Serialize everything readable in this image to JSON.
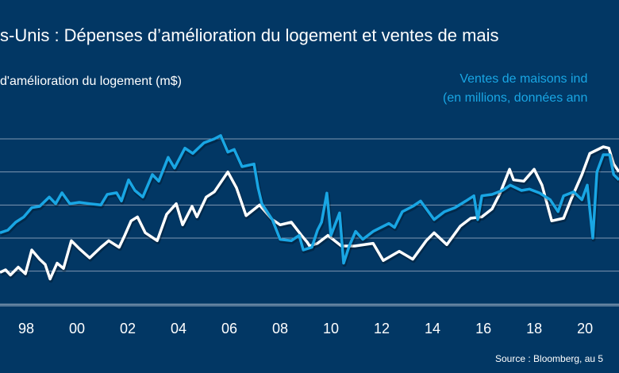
{
  "chart_data": {
    "type": "line",
    "title": "s-Unis : Dépenses d’amélioration du logement et ventes de mais",
    "left_axis_label": "d'amélioration du logement (m$)",
    "right_axis_label": [
      "Ventes de maisons ind",
      "(en millions, données ann"
    ],
    "source": "Source : Bloomberg, au 5",
    "x_tick_labels": [
      "98",
      "00",
      "02",
      "04",
      "06",
      "08",
      "10",
      "12",
      "14",
      "16",
      "18",
      "20"
    ],
    "x_tick_years": [
      1998,
      2000,
      2002,
      2004,
      2006,
      2008,
      2010,
      2012,
      2014,
      2016,
      2018,
      2020
    ],
    "xlim": [
      1996.97,
      2021.34
    ],
    "ylim": [
      0,
      5
    ],
    "grid": true,
    "colors": {
      "background": "#023764",
      "home_improvement": "#ffffff",
      "home_sales": "#19a6e4",
      "grid": "#7f97b2"
    },
    "series": [
      {
        "key": "home_improvement",
        "x": [
          1996.97,
          1997.19,
          1997.38,
          1997.69,
          1997.97,
          1998.22,
          1998.53,
          1998.75,
          1998.94,
          1999.22,
          1999.47,
          1999.78,
          2000.09,
          2000.5,
          2000.94,
          2001.25,
          2001.66,
          2001.88,
          2002.13,
          2002.38,
          2002.69,
          2003.16,
          2003.53,
          2003.91,
          2004.16,
          2004.53,
          2004.72,
          2005.09,
          2005.41,
          2005.94,
          2006.28,
          2006.66,
          2007.19,
          2007.69,
          2008.0,
          2008.44,
          2008.84,
          2009.06,
          2009.16,
          2009.47,
          2009.88,
          2010.41,
          2010.94,
          2011.66,
          2012.06,
          2012.69,
          2013.22,
          2013.75,
          2014.06,
          2014.56,
          2015.09,
          2015.5,
          2015.94,
          2016.34,
          2016.66,
          2017.03,
          2017.19,
          2017.59,
          2018.0,
          2018.31,
          2018.69,
          2019.16,
          2019.47,
          2019.88,
          2020.19,
          2020.72,
          2020.94,
          2021.13,
          2021.34
        ],
        "y": [
          0.96,
          1.04,
          0.88,
          1.12,
          0.92,
          1.64,
          1.36,
          1.2,
          0.76,
          1.24,
          1.08,
          1.92,
          1.68,
          1.4,
          1.72,
          1.92,
          1.72,
          2.08,
          2.52,
          2.64,
          2.16,
          1.92,
          2.72,
          3.04,
          2.4,
          2.96,
          2.64,
          3.24,
          3.4,
          4.0,
          3.52,
          2.68,
          3.0,
          2.56,
          2.4,
          2.48,
          2.08,
          1.88,
          1.76,
          1.84,
          2.08,
          1.76,
          1.76,
          1.84,
          1.32,
          1.6,
          1.36,
          1.92,
          2.16,
          1.8,
          2.36,
          2.6,
          2.64,
          2.88,
          3.36,
          4.08,
          3.76,
          3.72,
          4.08,
          3.6,
          2.52,
          2.6,
          3.2,
          3.92,
          4.56,
          4.76,
          4.72,
          4.24,
          4.0
        ]
      },
      {
        "key": "home_sales",
        "x": [
          1996.97,
          1997.28,
          1997.59,
          1997.91,
          1998.22,
          1998.53,
          1998.91,
          1999.16,
          1999.41,
          1999.72,
          2000.09,
          2000.5,
          2000.94,
          2001.19,
          2001.56,
          2001.75,
          2002.03,
          2002.28,
          2002.59,
          2002.97,
          2003.22,
          2003.59,
          2003.84,
          2004.25,
          2004.56,
          2005.0,
          2005.41,
          2005.66,
          2005.94,
          2006.19,
          2006.5,
          2006.97,
          2007.13,
          2007.28,
          2007.69,
          2008.0,
          2008.44,
          2008.75,
          2008.91,
          2009.25,
          2009.47,
          2009.63,
          2009.84,
          2010.0,
          2010.34,
          2010.5,
          2010.72,
          2010.97,
          2011.25,
          2011.66,
          2011.97,
          2012.28,
          2012.5,
          2012.81,
          2013.22,
          2013.53,
          2014.06,
          2014.47,
          2014.88,
          2015.31,
          2015.63,
          2015.78,
          2015.94,
          2016.34,
          2016.75,
          2017.06,
          2017.5,
          2017.81,
          2018.22,
          2018.63,
          2018.94,
          2019.16,
          2019.56,
          2019.88,
          2020.09,
          2020.31,
          2020.47,
          2020.72,
          2020.97,
          2021.13,
          2021.34
        ],
        "y": [
          2.16,
          2.24,
          2.48,
          2.64,
          2.92,
          2.96,
          3.24,
          3.04,
          3.37,
          3.04,
          3.08,
          3.04,
          3.0,
          3.32,
          3.37,
          3.12,
          3.76,
          3.44,
          3.24,
          3.92,
          3.72,
          4.44,
          4.12,
          4.72,
          4.56,
          4.88,
          5.0,
          5.1,
          4.6,
          4.68,
          4.16,
          4.24,
          3.52,
          3.04,
          2.56,
          1.96,
          1.92,
          2.08,
          1.64,
          1.72,
          2.24,
          2.48,
          3.36,
          2.08,
          2.76,
          1.24,
          1.76,
          2.2,
          1.96,
          2.2,
          2.32,
          2.44,
          2.32,
          2.8,
          2.96,
          3.12,
          2.56,
          2.8,
          2.92,
          3.12,
          3.28,
          2.56,
          3.28,
          3.32,
          3.44,
          3.6,
          3.44,
          3.48,
          3.36,
          3.16,
          2.8,
          3.28,
          3.4,
          3.16,
          3.6,
          2.0,
          4.0,
          4.52,
          4.52,
          3.92,
          3.76
        ]
      }
    ]
  }
}
